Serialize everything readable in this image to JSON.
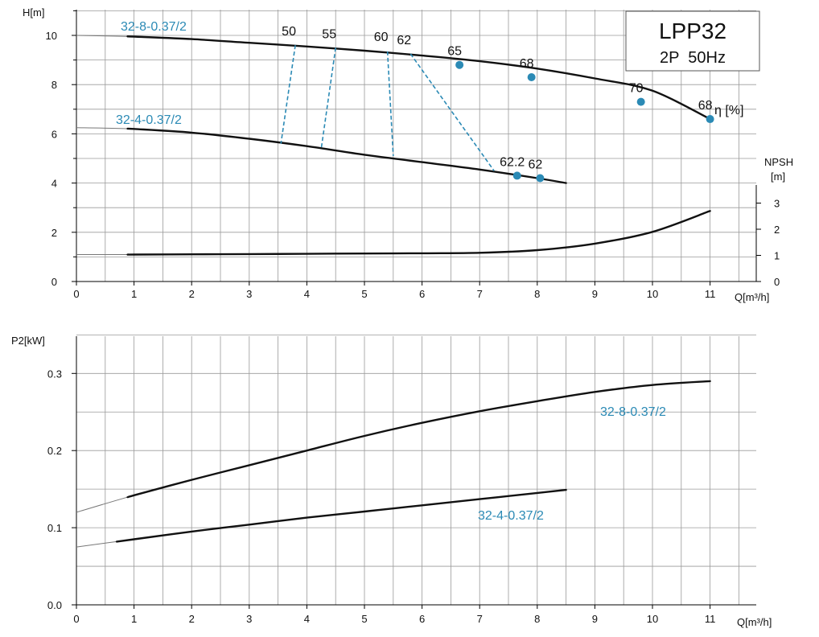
{
  "title_box": {
    "model": "LPP32",
    "subtitle": "2P  50Hz"
  },
  "chart_data": [
    {
      "type": "line",
      "name": "head",
      "ylabel": "H[m]",
      "xlabel": "Q[m³/h]",
      "xlim": [
        0,
        11.5
      ],
      "ylim": [
        0,
        11
      ],
      "x_ticks": [
        0,
        1,
        2,
        3,
        4,
        5,
        6,
        7,
        8,
        9,
        10,
        11
      ],
      "y_ticks": [
        0,
        2,
        4,
        6,
        8,
        10
      ],
      "series": [
        {
          "name": "32-8-0.37/2",
          "x": [
            0,
            1,
            2,
            3,
            4,
            5,
            6,
            7,
            8,
            9,
            10,
            11
          ],
          "y": [
            10.0,
            9.95,
            9.85,
            9.7,
            9.55,
            9.38,
            9.18,
            8.95,
            8.65,
            8.25,
            7.75,
            6.6
          ],
          "drawn_from": 0.9
        },
        {
          "name": "32-4-0.37/2",
          "x": [
            0,
            1,
            2,
            3,
            4,
            5,
            6,
            7,
            8,
            8.5
          ],
          "y": [
            6.25,
            6.2,
            6.05,
            5.8,
            5.5,
            5.15,
            4.85,
            4.55,
            4.2,
            4.0
          ],
          "drawn_from": 0.9
        }
      ],
      "efficiency_points": [
        {
          "label": "65",
          "x": 6.65,
          "y": 8.8,
          "marker": true
        },
        {
          "label": "68",
          "x": 7.9,
          "y": 8.3,
          "marker": true
        },
        {
          "label": "70",
          "x": 9.8,
          "y": 7.3,
          "marker": true
        },
        {
          "label": "68",
          "x": 11.0,
          "y": 6.6,
          "marker": true
        },
        {
          "label": "62.2",
          "x": 7.65,
          "y": 4.3,
          "marker": true
        },
        {
          "label": "62",
          "x": 8.05,
          "y": 4.2,
          "marker": true
        },
        {
          "label": "50",
          "x": 3.8,
          "y": 9.6,
          "marker": false
        },
        {
          "label": "55",
          "x": 4.5,
          "y": 9.5,
          "marker": false
        },
        {
          "label": "60",
          "x": 5.4,
          "y": 9.38,
          "marker": false
        },
        {
          "label": "62",
          "x": 5.8,
          "y": 9.25,
          "marker": false
        }
      ],
      "iso_efficiency_lines": [
        {
          "from": [
            3.8,
            9.6
          ],
          "to": [
            3.55,
            5.6
          ]
        },
        {
          "from": [
            4.5,
            9.5
          ],
          "to": [
            4.25,
            5.4
          ]
        },
        {
          "from": [
            5.4,
            9.35
          ],
          "to": [
            5.5,
            5.1
          ]
        },
        {
          "from": [
            5.8,
            9.25
          ],
          "to": [
            7.25,
            4.5
          ]
        }
      ],
      "efficiency_unit": "η [%]"
    },
    {
      "type": "line",
      "name": "npsh",
      "ylabel": "NPSH\n[m]",
      "y_axis_side": "right",
      "ylim": [
        0,
        3.5
      ],
      "y_ticks": [
        0,
        1,
        2,
        3
      ],
      "series": [
        {
          "name": "NPSH",
          "x": [
            0,
            1,
            2,
            3,
            4,
            5,
            6,
            7,
            8,
            9,
            10,
            11
          ],
          "y": [
            1.03,
            1.03,
            1.04,
            1.05,
            1.06,
            1.07,
            1.08,
            1.1,
            1.2,
            1.45,
            1.9,
            2.7
          ],
          "drawn_from": 0.9
        }
      ]
    },
    {
      "type": "line",
      "name": "power",
      "ylabel": "P2[kW]",
      "xlabel": "Q[m³/h]",
      "xlim": [
        0,
        11.5
      ],
      "ylim": [
        0,
        0.35
      ],
      "x_ticks": [
        0,
        1,
        2,
        3,
        4,
        5,
        6,
        7,
        8,
        9,
        10,
        11
      ],
      "y_ticks": [
        "0.0",
        "0.1",
        "0.2",
        "0.3"
      ],
      "series": [
        {
          "name": "32-8-0.37/2",
          "x": [
            0,
            1,
            2,
            3,
            4,
            5,
            6,
            7,
            8,
            9,
            10,
            11
          ],
          "y": [
            0.12,
            0.142,
            0.162,
            0.181,
            0.2,
            0.219,
            0.236,
            0.251,
            0.264,
            0.276,
            0.285,
            0.29
          ],
          "drawn_from": 0.9
        },
        {
          "name": "32-4-0.37/2",
          "x": [
            0,
            1,
            2,
            3,
            4,
            5,
            6,
            7,
            8,
            8.5
          ],
          "y": [
            0.075,
            0.085,
            0.095,
            0.104,
            0.113,
            0.121,
            0.129,
            0.137,
            0.145,
            0.149
          ],
          "drawn_from": 0.7
        }
      ]
    }
  ]
}
